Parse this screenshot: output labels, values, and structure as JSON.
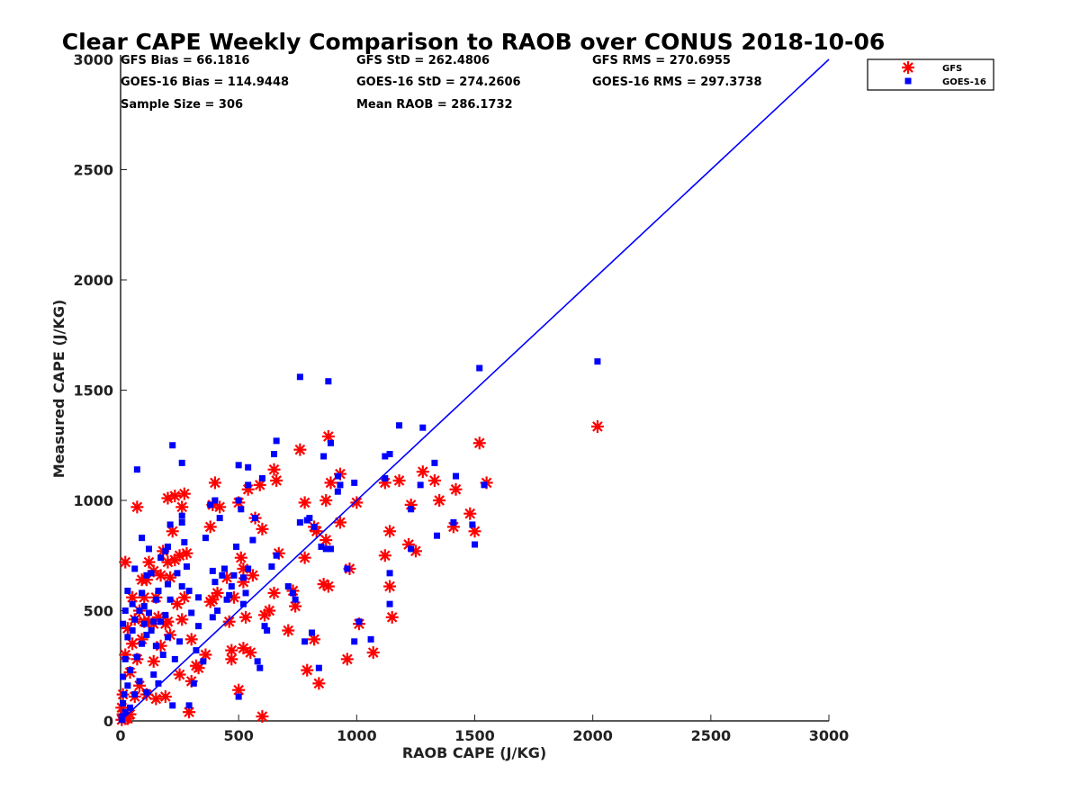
{
  "chart_data": {
    "type": "scatter",
    "title": "Clear CAPE Weekly Comparison to RAOB over CONUS 2018-10-06",
    "xlabel": "RAOB CAPE (J/KG)",
    "ylabel": "Measured CAPE (J/KG)",
    "xlim": [
      0,
      3000
    ],
    "ylim": [
      0,
      3000
    ],
    "xticks": [
      0,
      500,
      1000,
      1500,
      2000,
      2500,
      3000
    ],
    "yticks": [
      0,
      500,
      1000,
      1500,
      2000,
      2500,
      3000
    ],
    "grid": false,
    "legend_position": "top-right",
    "stats": [
      "GFS Bias = 66.1816",
      "GFS StD = 262.4806",
      "GFS RMS = 270.6955",
      "GOES-16 Bias = 114.9448",
      "GOES-16 StD = 274.2606",
      "GOES-16 RMS = 297.3738",
      "Sample Size = 306",
      "Mean RAOB = 286.1732"
    ],
    "reference_line": {
      "x": [
        0,
        3000
      ],
      "y": [
        0,
        3000
      ],
      "color": "#0000ff"
    },
    "series": [
      {
        "name": "GFS",
        "marker": "asterisk",
        "color": "#ff0000",
        "points": [
          [
            2020,
            1335
          ],
          [
            1520,
            1260
          ],
          [
            1550,
            1080
          ],
          [
            1480,
            940
          ],
          [
            1500,
            860
          ],
          [
            1420,
            1050
          ],
          [
            1410,
            880
          ],
          [
            1350,
            1000
          ],
          [
            1330,
            1090
          ],
          [
            1280,
            1130
          ],
          [
            1250,
            770
          ],
          [
            1220,
            800
          ],
          [
            1230,
            980
          ],
          [
            1180,
            1090
          ],
          [
            1140,
            860
          ],
          [
            1140,
            610
          ],
          [
            1150,
            470
          ],
          [
            1120,
            1080
          ],
          [
            1120,
            750
          ],
          [
            1070,
            310
          ],
          [
            1010,
            440
          ],
          [
            1000,
            990
          ],
          [
            970,
            690
          ],
          [
            960,
            280
          ],
          [
            930,
            1120
          ],
          [
            930,
            900
          ],
          [
            890,
            1080
          ],
          [
            880,
            1290
          ],
          [
            870,
            820
          ],
          [
            880,
            610
          ],
          [
            870,
            1000
          ],
          [
            860,
            620
          ],
          [
            830,
            860
          ],
          [
            820,
            880
          ],
          [
            820,
            370
          ],
          [
            840,
            170
          ],
          [
            780,
            990
          ],
          [
            780,
            740
          ],
          [
            790,
            230
          ],
          [
            760,
            1230
          ],
          [
            710,
            410
          ],
          [
            730,
            590
          ],
          [
            740,
            520
          ],
          [
            670,
            760
          ],
          [
            660,
            1090
          ],
          [
            650,
            1140
          ],
          [
            650,
            580
          ],
          [
            630,
            500
          ],
          [
            610,
            480
          ],
          [
            600,
            870
          ],
          [
            600,
            20
          ],
          [
            590,
            1070
          ],
          [
            570,
            920
          ],
          [
            560,
            660
          ],
          [
            550,
            310
          ],
          [
            540,
            1050
          ],
          [
            530,
            470
          ],
          [
            520,
            690
          ],
          [
            520,
            630
          ],
          [
            520,
            330
          ],
          [
            510,
            740
          ],
          [
            500,
            990
          ],
          [
            500,
            140
          ],
          [
            480,
            560
          ],
          [
            470,
            320
          ],
          [
            470,
            280
          ],
          [
            460,
            450
          ],
          [
            450,
            650
          ],
          [
            420,
            970
          ],
          [
            410,
            580
          ],
          [
            400,
            1080
          ],
          [
            390,
            980
          ],
          [
            390,
            550
          ],
          [
            380,
            880
          ],
          [
            380,
            540
          ],
          [
            360,
            300
          ],
          [
            330,
            240
          ],
          [
            320,
            250
          ],
          [
            300,
            370
          ],
          [
            300,
            180
          ],
          [
            290,
            40
          ],
          [
            280,
            760
          ],
          [
            270,
            1030
          ],
          [
            270,
            560
          ],
          [
            260,
            970
          ],
          [
            260,
            460
          ],
          [
            250,
            750
          ],
          [
            250,
            210
          ],
          [
            240,
            530
          ],
          [
            230,
            1020
          ],
          [
            230,
            730
          ],
          [
            220,
            860
          ],
          [
            210,
            650
          ],
          [
            210,
            390
          ],
          [
            200,
            1010
          ],
          [
            200,
            720
          ],
          [
            200,
            450
          ],
          [
            190,
            440
          ],
          [
            190,
            110
          ],
          [
            180,
            770
          ],
          [
            170,
            660
          ],
          [
            170,
            340
          ],
          [
            160,
            470
          ],
          [
            150,
            560
          ],
          [
            150,
            100
          ],
          [
            140,
            680
          ],
          [
            140,
            440
          ],
          [
            140,
            270
          ],
          [
            120,
            720
          ],
          [
            120,
            450
          ],
          [
            110,
            640
          ],
          [
            110,
            120
          ],
          [
            100,
            560
          ],
          [
            100,
            450
          ],
          [
            90,
            640
          ],
          [
            90,
            370
          ],
          [
            80,
            500
          ],
          [
            80,
            160
          ],
          [
            70,
            970
          ],
          [
            70,
            280
          ],
          [
            60,
            460
          ],
          [
            60,
            110
          ],
          [
            50,
            560
          ],
          [
            50,
            350
          ],
          [
            40,
            220
          ],
          [
            40,
            30
          ],
          [
            30,
            420
          ],
          [
            30,
            10
          ],
          [
            20,
            720
          ],
          [
            20,
            300
          ],
          [
            20,
            10
          ],
          [
            10,
            120
          ],
          [
            10,
            30
          ],
          [
            5,
            60
          ],
          [
            5,
            5
          ]
        ]
      },
      {
        "name": "GOES-16",
        "marker": "square",
        "color": "#0000ff",
        "points": [
          [
            2020,
            1630
          ],
          [
            1520,
            1600
          ],
          [
            1540,
            1070
          ],
          [
            1500,
            800
          ],
          [
            1490,
            890
          ],
          [
            1420,
            1110
          ],
          [
            1410,
            900
          ],
          [
            1340,
            840
          ],
          [
            1330,
            1170
          ],
          [
            1280,
            1330
          ],
          [
            1270,
            1070
          ],
          [
            1230,
            960
          ],
          [
            1230,
            780
          ],
          [
            1180,
            1340
          ],
          [
            1140,
            1210
          ],
          [
            1140,
            670
          ],
          [
            1140,
            530
          ],
          [
            1120,
            1200
          ],
          [
            1120,
            1100
          ],
          [
            1060,
            370
          ],
          [
            1010,
            450
          ],
          [
            990,
            360
          ],
          [
            990,
            1080
          ],
          [
            960,
            690
          ],
          [
            930,
            1070
          ],
          [
            920,
            1110
          ],
          [
            920,
            1040
          ],
          [
            890,
            1260
          ],
          [
            890,
            780
          ],
          [
            880,
            1540
          ],
          [
            870,
            780
          ],
          [
            860,
            1200
          ],
          [
            850,
            790
          ],
          [
            840,
            240
          ],
          [
            820,
            880
          ],
          [
            810,
            400
          ],
          [
            800,
            920
          ],
          [
            790,
            910
          ],
          [
            780,
            360
          ],
          [
            760,
            1560
          ],
          [
            760,
            900
          ],
          [
            740,
            550
          ],
          [
            730,
            580
          ],
          [
            710,
            610
          ],
          [
            660,
            1270
          ],
          [
            660,
            750
          ],
          [
            650,
            1210
          ],
          [
            640,
            700
          ],
          [
            620,
            410
          ],
          [
            610,
            430
          ],
          [
            600,
            1100
          ],
          [
            590,
            240
          ],
          [
            580,
            270
          ],
          [
            570,
            920
          ],
          [
            560,
            820
          ],
          [
            540,
            1150
          ],
          [
            540,
            1070
          ],
          [
            540,
            690
          ],
          [
            530,
            580
          ],
          [
            520,
            650
          ],
          [
            520,
            530
          ],
          [
            510,
            960
          ],
          [
            500,
            1160
          ],
          [
            500,
            1000
          ],
          [
            500,
            110
          ],
          [
            490,
            790
          ],
          [
            480,
            660
          ],
          [
            470,
            610
          ],
          [
            460,
            570
          ],
          [
            450,
            550
          ],
          [
            440,
            690
          ],
          [
            430,
            660
          ],
          [
            420,
            920
          ],
          [
            410,
            500
          ],
          [
            400,
            1000
          ],
          [
            400,
            630
          ],
          [
            390,
            680
          ],
          [
            390,
            470
          ],
          [
            380,
            980
          ],
          [
            360,
            830
          ],
          [
            350,
            270
          ],
          [
            330,
            560
          ],
          [
            330,
            430
          ],
          [
            320,
            320
          ],
          [
            310,
            170
          ],
          [
            300,
            490
          ],
          [
            290,
            590
          ],
          [
            290,
            70
          ],
          [
            280,
            700
          ],
          [
            270,
            810
          ],
          [
            260,
            1170
          ],
          [
            260,
            930
          ],
          [
            260,
            900
          ],
          [
            260,
            610
          ],
          [
            250,
            360
          ],
          [
            240,
            670
          ],
          [
            230,
            280
          ],
          [
            220,
            1250
          ],
          [
            220,
            70
          ],
          [
            210,
            890
          ],
          [
            210,
            550
          ],
          [
            200,
            790
          ],
          [
            200,
            620
          ],
          [
            200,
            380
          ],
          [
            190,
            770
          ],
          [
            190,
            480
          ],
          [
            180,
            300
          ],
          [
            170,
            740
          ],
          [
            170,
            450
          ],
          [
            160,
            590
          ],
          [
            160,
            170
          ],
          [
            150,
            550
          ],
          [
            150,
            340
          ],
          [
            140,
            450
          ],
          [
            140,
            210
          ],
          [
            130,
            670
          ],
          [
            130,
            410
          ],
          [
            120,
            780
          ],
          [
            120,
            490
          ],
          [
            110,
            660
          ],
          [
            110,
            390
          ],
          [
            110,
            130
          ],
          [
            100,
            520
          ],
          [
            100,
            440
          ],
          [
            90,
            830
          ],
          [
            90,
            580
          ],
          [
            90,
            350
          ],
          [
            80,
            500
          ],
          [
            80,
            180
          ],
          [
            70,
            1140
          ],
          [
            70,
            290
          ],
          [
            60,
            690
          ],
          [
            60,
            460
          ],
          [
            60,
            120
          ],
          [
            50,
            530
          ],
          [
            50,
            410
          ],
          [
            40,
            230
          ],
          [
            40,
            60
          ],
          [
            30,
            590
          ],
          [
            30,
            380
          ],
          [
            30,
            160
          ],
          [
            20,
            500
          ],
          [
            20,
            280
          ],
          [
            20,
            40
          ],
          [
            10,
            440
          ],
          [
            10,
            200
          ],
          [
            10,
            80
          ],
          [
            5,
            20
          ],
          [
            5,
            5
          ],
          [
            15,
            120
          ]
        ]
      }
    ]
  }
}
